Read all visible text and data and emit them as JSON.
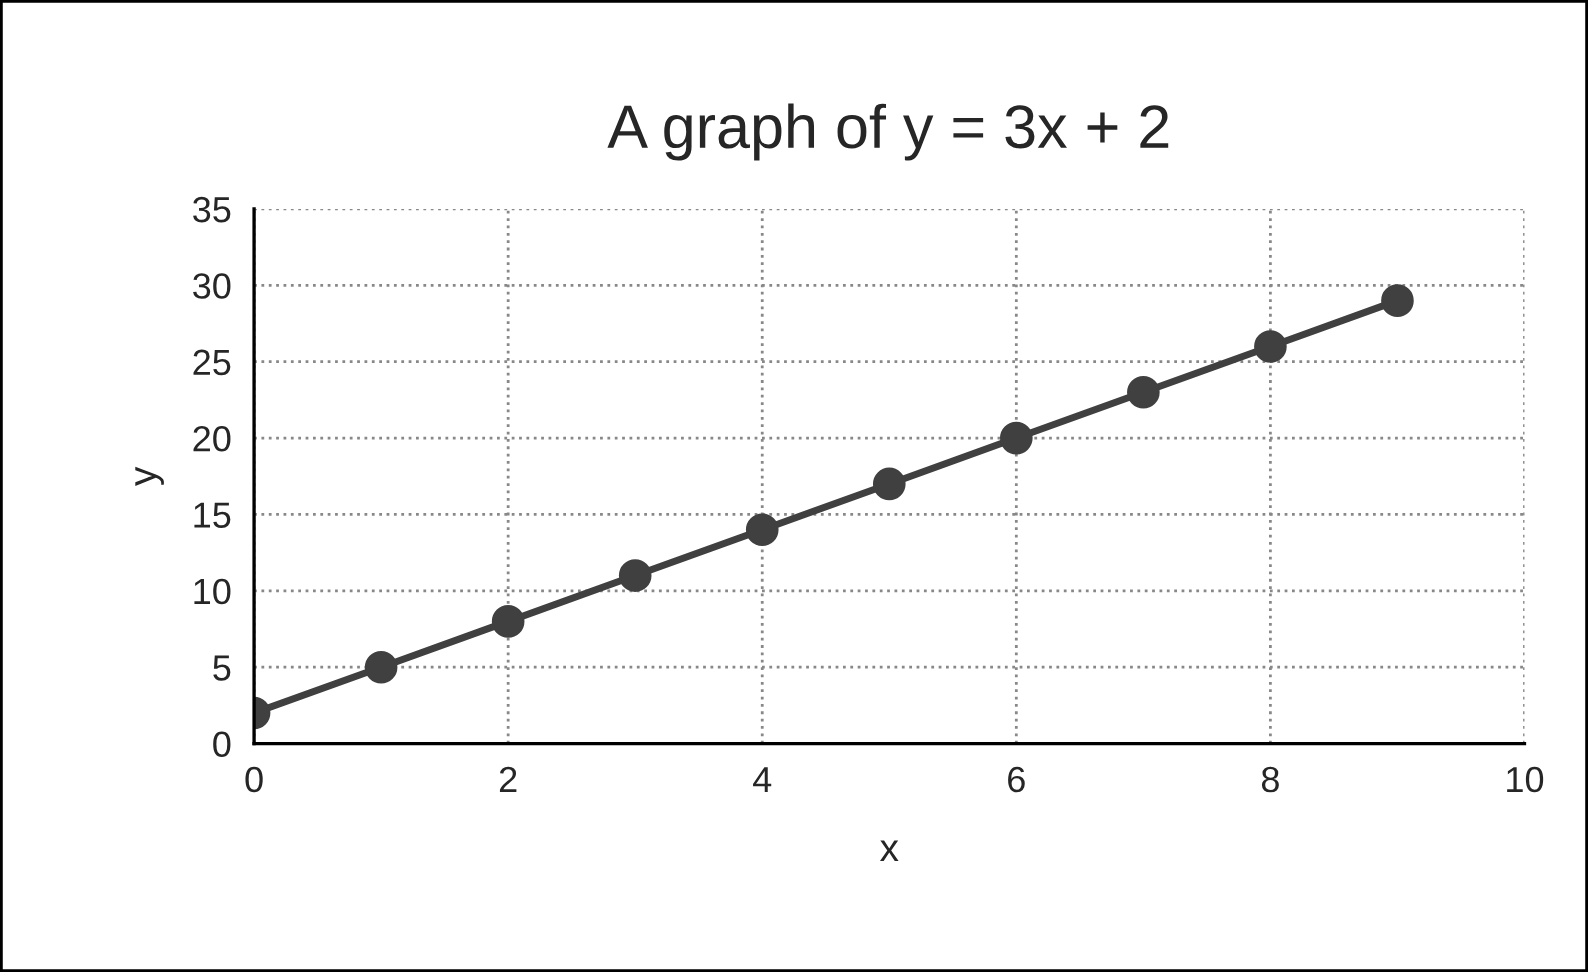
{
  "chart_data": {
    "type": "line",
    "title": "A graph of y = 3x + 2",
    "xlabel": "x",
    "ylabel": "y",
    "x": [
      0,
      1,
      2,
      3,
      4,
      5,
      6,
      7,
      8,
      9
    ],
    "series": [
      {
        "color": "#404040",
        "values": [
          2,
          5,
          8,
          11,
          14,
          17,
          20,
          23,
          26,
          29
        ]
      }
    ],
    "xlim": [
      0,
      10
    ],
    "xticks": [
      0,
      2,
      4,
      6,
      8,
      10
    ],
    "ylim": [
      0,
      35
    ],
    "yticks": [
      0,
      5,
      10,
      15,
      20,
      25,
      30,
      35
    ],
    "grid": true,
    "marker": "circle",
    "line_style": "solid"
  }
}
